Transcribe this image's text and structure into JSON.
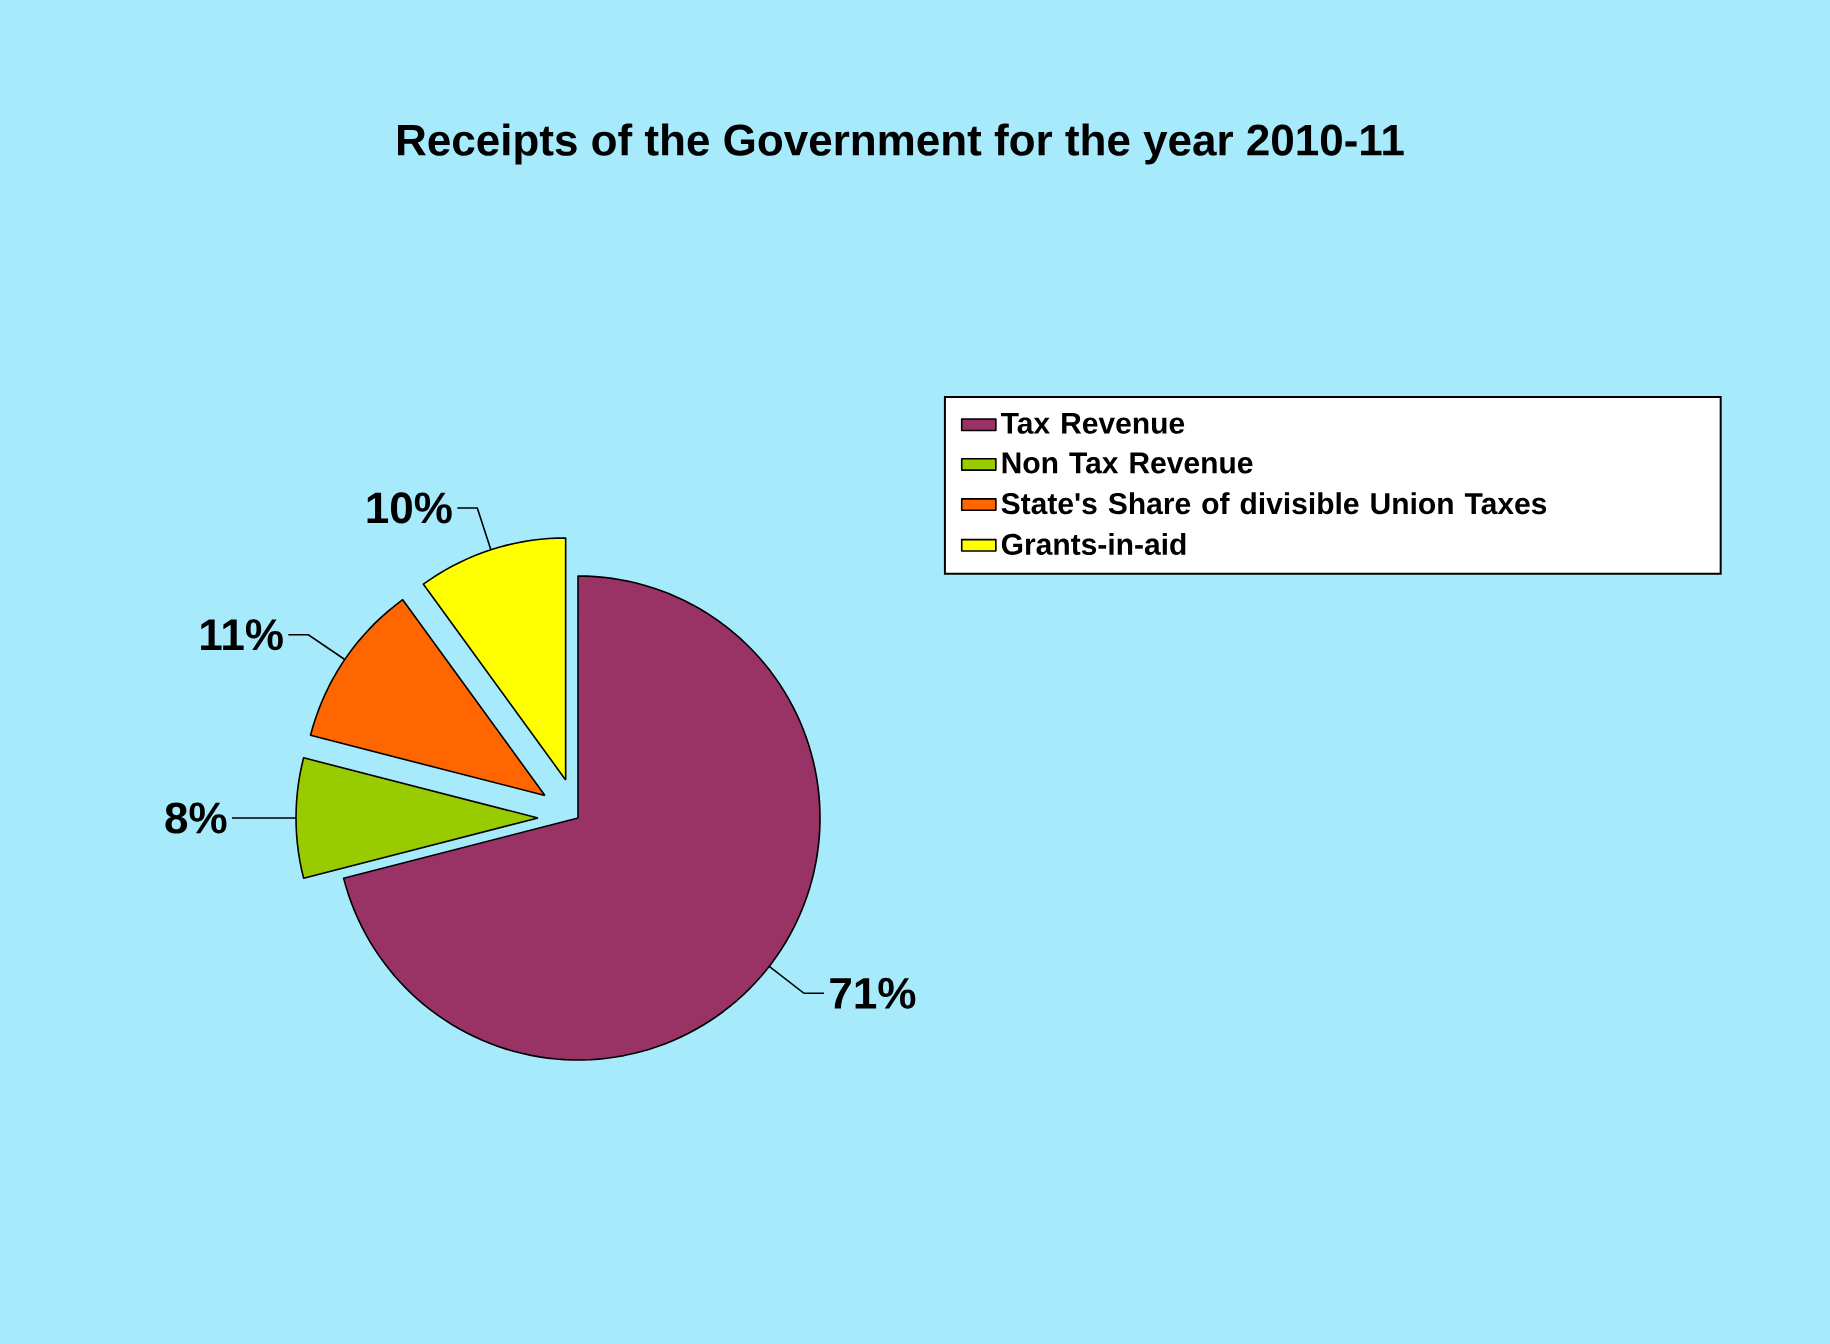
{
  "chart_data": {
    "type": "pie",
    "title": "Receipts of the Government for the year  2010-11",
    "categories": [
      "Tax Revenue",
      "Non Tax Revenue",
      "State's Share of divisible Union Taxes",
      "Grants-in-aid"
    ],
    "values": [
      71,
      8,
      11,
      10
    ],
    "colors": [
      "#993366",
      "#99cc00",
      "#ff6600",
      "#ffff00"
    ],
    "value_labels": [
      "71%",
      "8%",
      "11%",
      "10%"
    ],
    "legend": "right"
  }
}
